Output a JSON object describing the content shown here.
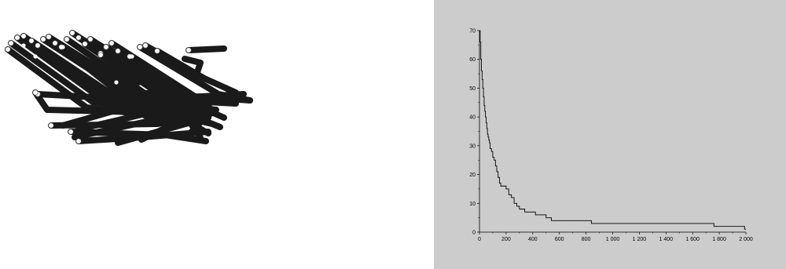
{
  "colors": {
    "left_background": "#ffffff",
    "right_background": "#cccccc",
    "tube": "#1a1a1a",
    "tube_end": "#ffffff",
    "line": "#000000"
  },
  "tube_image": {
    "description_icon": "3d-tube-network",
    "tubes": [
      {
        "pts": [
          [
            10,
            63
          ],
          [
            110,
            137
          ],
          [
            255,
            155
          ]
        ]
      },
      {
        "pts": [
          [
            14,
            55
          ],
          [
            118,
            130
          ],
          [
            262,
            150
          ]
        ]
      },
      {
        "pts": [
          [
            22,
            48
          ],
          [
            128,
            125
          ],
          [
            268,
            145
          ]
        ]
      },
      {
        "pts": [
          [
            30,
            46
          ],
          [
            145,
            128
          ],
          [
            275,
            140
          ]
        ]
      },
      {
        "pts": [
          [
            40,
            52
          ],
          [
            160,
            132
          ],
          [
            270,
            158
          ]
        ]
      },
      {
        "pts": [
          [
            48,
            58
          ],
          [
            150,
            140
          ],
          [
            80,
            160
          ]
        ]
      },
      {
        "pts": [
          [
            55,
            50
          ],
          [
            170,
            125
          ],
          [
            300,
            132
          ]
        ]
      },
      {
        "pts": [
          [
            62,
            47
          ],
          [
            175,
            118
          ],
          [
            318,
            128
          ]
        ]
      },
      {
        "pts": [
          [
            70,
            55
          ],
          [
            190,
            128
          ],
          [
            265,
            170
          ]
        ]
      },
      {
        "pts": [
          [
            78,
            60
          ],
          [
            185,
            145
          ],
          [
            100,
            165
          ]
        ]
      },
      {
        "pts": [
          [
            85,
            50
          ],
          [
            200,
            130
          ],
          [
            280,
            162
          ]
        ]
      },
      {
        "pts": [
          [
            92,
            42
          ],
          [
            210,
            118
          ],
          [
            270,
            130
          ]
        ]
      },
      {
        "pts": [
          [
            100,
            48
          ],
          [
            220,
            125
          ],
          [
            310,
            120
          ]
        ]
      },
      {
        "pts": [
          [
            108,
            56
          ],
          [
            230,
            138
          ],
          [
            255,
            176
          ]
        ]
      },
      {
        "pts": [
          [
            115,
            50
          ],
          [
            240,
            130
          ],
          [
            285,
            150
          ]
        ]
      },
      {
        "pts": [
          [
            128,
            68
          ],
          [
            248,
            145
          ],
          [
            180,
            178
          ]
        ]
      },
      {
        "pts": [
          [
            135,
            60
          ],
          [
            255,
            140
          ],
          [
            95,
            175
          ]
        ]
      },
      {
        "pts": [
          [
            142,
            55
          ],
          [
            262,
            132
          ],
          [
            300,
            125
          ]
        ]
      },
      {
        "pts": [
          [
            150,
            65
          ],
          [
            270,
            140
          ],
          [
            240,
            172
          ]
        ]
      },
      {
        "pts": [
          [
            165,
            72
          ],
          [
            265,
            150
          ],
          [
            150,
            182
          ]
        ]
      },
      {
        "pts": [
          [
            178,
            60
          ],
          [
            278,
            120
          ],
          [
            318,
            128
          ]
        ]
      },
      {
        "pts": [
          [
            185,
            58
          ],
          [
            250,
            95
          ],
          [
            255,
            80
          ],
          [
            235,
            75
          ]
        ]
      },
      {
        "pts": [
          [
            240,
            64
          ],
          [
            285,
            62
          ]
        ]
      },
      {
        "pts": [
          [
            200,
            65
          ],
          [
            260,
            100
          ],
          [
            300,
            118
          ]
        ]
      },
      {
        "pts": [
          [
            48,
            120
          ],
          [
            140,
            125
          ],
          [
            200,
            155
          ]
        ]
      },
      {
        "pts": [
          [
            65,
            160
          ],
          [
            200,
            158
          ],
          [
            258,
            148
          ]
        ]
      },
      {
        "pts": [
          [
            90,
            168
          ],
          [
            210,
            172
          ],
          [
            262,
            180
          ]
        ]
      },
      {
        "pts": [
          [
            45,
            118
          ],
          [
            60,
            140
          ],
          [
            250,
            145
          ]
        ]
      },
      {
        "pts": [
          [
            100,
            180
          ],
          [
            180,
            175
          ],
          [
            265,
            168
          ]
        ]
      },
      {
        "pts": [
          [
            128,
            70
          ],
          [
            175,
            105
          ],
          [
            210,
            100
          ]
        ]
      }
    ],
    "interior_ends": [
      [
        148,
        105
      ],
      [
        80,
        60
      ],
      [
        45,
        72
      ],
      [
        168,
        72
      ],
      [
        30,
        58
      ]
    ]
  },
  "chart_data": {
    "type": "line",
    "step": true,
    "x_ticks": [
      "0",
      "200",
      "400",
      "600",
      "800",
      "1 000",
      "1 200",
      "1 400",
      "1 600",
      "1 800",
      "2 000"
    ],
    "x_tick_values": [
      0,
      200,
      400,
      600,
      800,
      1000,
      1200,
      1400,
      1600,
      1800,
      2000
    ],
    "y_ticks": [
      "0",
      "10",
      "20",
      "30",
      "40",
      "50",
      "60",
      "70"
    ],
    "y_tick_values": [
      0,
      10,
      20,
      30,
      40,
      50,
      60,
      70
    ],
    "xlim": [
      0,
      2000
    ],
    "ylim": [
      0,
      70
    ],
    "grid": false,
    "series": [
      {
        "x": [
          0,
          5,
          10,
          15,
          20,
          25,
          30,
          35,
          40,
          45,
          50,
          55,
          60,
          65,
          70,
          75,
          80,
          90,
          100,
          110,
          120,
          130,
          140,
          150,
          160,
          180,
          200,
          220,
          240,
          260,
          280,
          300,
          340,
          380,
          420,
          460,
          500,
          540,
          600,
          700,
          840,
          1000,
          1200,
          1400,
          1600,
          1760,
          1800,
          1990,
          2000
        ],
        "y": [
          70,
          66,
          60,
          56,
          53,
          50,
          47,
          44,
          42,
          40,
          38,
          36,
          34,
          33,
          32,
          31,
          29,
          28,
          26,
          25,
          23,
          21,
          19,
          17,
          16,
          16,
          15,
          13,
          12,
          10,
          9,
          8,
          7,
          7,
          6,
          6,
          5,
          4,
          4,
          4,
          3,
          3,
          3,
          3,
          3,
          2,
          2,
          1,
          1
        ]
      }
    ]
  }
}
